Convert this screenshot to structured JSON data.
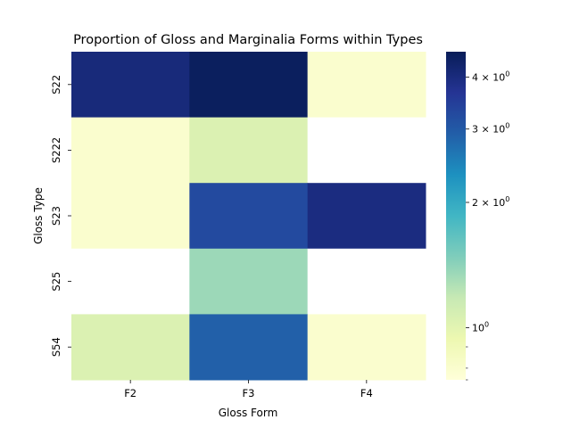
{
  "chart_data": {
    "type": "heatmap",
    "title": "Proportion of Gloss and Marginalia Forms within Types",
    "xlabel": "Gloss Form",
    "ylabel": "Gloss Type",
    "x_categories": [
      "F2",
      "F3",
      "F4"
    ],
    "y_categories": [
      "S22",
      "S222",
      "S23",
      "S25",
      "S54"
    ],
    "values": [
      [
        4.05,
        4.5,
        0.8
      ],
      [
        0.8,
        1.05,
        null
      ],
      [
        0.8,
        3.25,
        3.95
      ],
      [
        null,
        1.35,
        null
      ],
      [
        1.05,
        2.9,
        0.8
      ]
    ],
    "colorbar": {
      "scale": "log",
      "range": [
        0.75,
        4.6
      ],
      "colormap": "YlGnBu",
      "tick_values": [
        1,
        2,
        3,
        4
      ],
      "tick_labels": [
        "10^0",
        "2×10^0",
        "3×10^0",
        "4×10^0"
      ],
      "minor_ticks": [
        0.8,
        0.9
      ]
    },
    "missing_color": "#ffffff"
  }
}
